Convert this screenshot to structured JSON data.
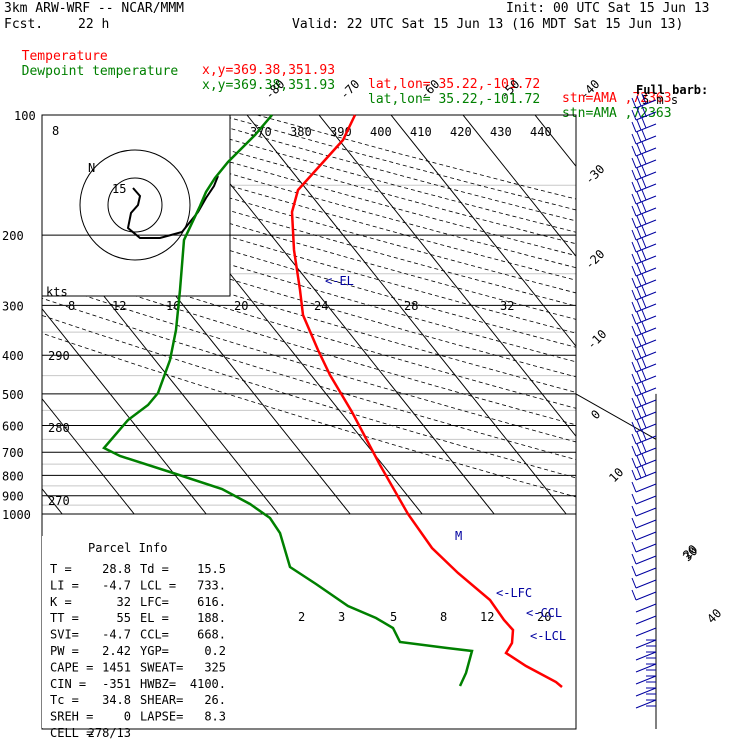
{
  "header": {
    "model": "3km ARW-WRF -- NCAR/MMM",
    "fcst_label": "Fcst.",
    "fcst_value": "22 h",
    "init": "Init: 00 UTC Sat 15 Jun 13",
    "valid": "Valid: 22 UTC Sat 15 Jun 13 (16 MDT Sat 15 Jun 13)",
    "temp_line": {
      "name": "Temperature",
      "xy": "x,y=369.38,351.93",
      "latlon": "lat,lon= 35.22,-101.72",
      "stn": "stn=AMA ,72363"
    },
    "dew_line": {
      "name": "Dewpoint temperature",
      "xy": "x,y=369.38,351.93",
      "latlon": "lat,lon= 35.22,-101.72",
      "stn": "stn=AMA ,72363"
    }
  },
  "colors": {
    "temperature": "#ff0000",
    "dewpoint": "#008000",
    "background_lines": "#000000",
    "parcel_text": "#0000a0",
    "wind_barbs": "#0000a0"
  },
  "chart_data": {
    "type": "skew-t log-p",
    "pressure_labels": [
      "100",
      "200",
      "300",
      "400",
      "500",
      "600",
      "700",
      "800",
      "900",
      "1000"
    ],
    "skew_temp_labels_top": [
      "-80",
      "-70",
      "-60",
      "-50",
      "-40"
    ],
    "skew_temp_labels_right": [
      "-30",
      "-20",
      "-10",
      "0",
      "10",
      "20",
      "30",
      "40"
    ],
    "theta_e_labels": [
      "370",
      "380",
      "390",
      "400",
      "410",
      "420",
      "430",
      "440"
    ],
    "theta_labels": [
      "290",
      "280",
      "270"
    ],
    "mixing_ratio_labels_200": [
      "8",
      "12",
      "16",
      "20",
      "24",
      "28",
      "32"
    ],
    "mixing_ratio_labels_700": [
      "2",
      "3",
      "5",
      "8",
      "12",
      "20"
    ],
    "hodograph_label": "kts",
    "hodograph_ring_labels": [
      "8",
      "N",
      "15"
    ],
    "barb_legend": [
      "Full barb:",
      "5 m s"
    ],
    "annotations": [
      "<-EL",
      "<-LFC",
      "<-CCL",
      "<-LCL"
    ],
    "temperature_profile": [
      {
        "p": 100,
        "t": -63
      },
      {
        "p": 150,
        "t": -60
      },
      {
        "p": 200,
        "t": -53
      },
      {
        "p": 300,
        "t": -38
      },
      {
        "p": 400,
        "t": -22
      },
      {
        "p": 500,
        "t": -8
      },
      {
        "p": 600,
        "t": 4
      },
      {
        "p": 700,
        "t": 12
      },
      {
        "p": 750,
        "t": 14
      },
      {
        "p": 800,
        "t": 16
      },
      {
        "p": 900,
        "t": 28.8
      }
    ],
    "dewpoint_profile": [
      {
        "p": 100,
        "t": -72
      },
      {
        "p": 150,
        "t": -70
      },
      {
        "p": 200,
        "t": -68
      },
      {
        "p": 300,
        "t": -62
      },
      {
        "p": 350,
        "t": -66
      },
      {
        "p": 400,
        "t": -48
      },
      {
        "p": 500,
        "t": -28
      },
      {
        "p": 600,
        "t": -15
      },
      {
        "p": 700,
        "t": -3
      },
      {
        "p": 750,
        "t": 0
      },
      {
        "p": 800,
        "t": 11
      },
      {
        "p": 900,
        "t": 15.5
      }
    ],
    "parcel_info": {
      "title": "Parcel Info",
      "rows": [
        [
          "T  =",
          "28.8",
          "Td =",
          "15.5"
        ],
        [
          "LI =",
          "-4.7",
          "LCL =",
          "733."
        ],
        [
          "K  =",
          "32",
          "LFC=",
          "616."
        ],
        [
          "TT =",
          "55",
          "EL =",
          "188."
        ],
        [
          "SVI=",
          "-4.7",
          "CCL=",
          "668."
        ],
        [
          "PW =",
          "2.42",
          "YGP=",
          "0.2"
        ],
        [
          "CAPE =",
          "1451",
          "SWEAT=",
          "325"
        ],
        [
          "CIN =",
          "-351",
          "HWBZ=",
          "4100."
        ],
        [
          "Tc =",
          "34.8",
          "SHEAR=",
          "26."
        ],
        [
          "SREH =",
          "0",
          "LAPSE=",
          "8.3"
        ],
        [
          "CELL =",
          "278/13",
          "",
          ""
        ]
      ]
    }
  }
}
